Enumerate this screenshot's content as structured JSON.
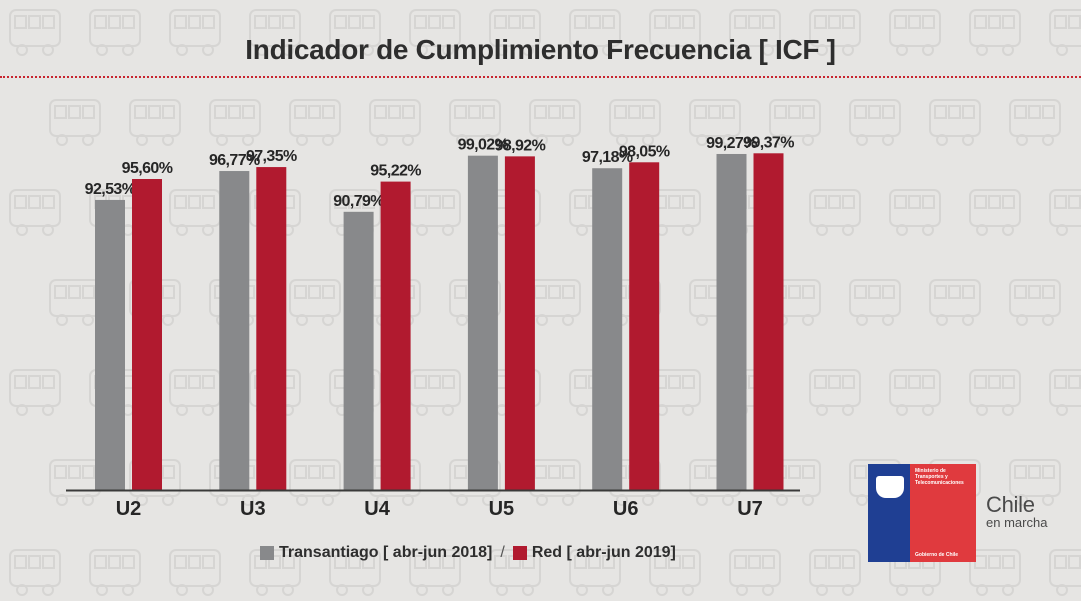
{
  "title": "Indicador de Cumplimiento Frecuencia [ ICF ]",
  "chart_data": {
    "type": "bar",
    "categories": [
      "U2",
      "U3",
      "U4",
      "U5",
      "U6",
      "U7"
    ],
    "series": [
      {
        "name": "Transantiago [ abr-jun 2018]",
        "color": "#88898b",
        "values": [
          92.53,
          96.77,
          90.79,
          99.02,
          97.18,
          99.27
        ],
        "labels": [
          "92,53%",
          "96,77%",
          "90,79%",
          "99,02%",
          "97,18%",
          "99,27%"
        ]
      },
      {
        "name": "Red [ abr-jun 2019]",
        "color": "#b11a2f",
        "values": [
          95.6,
          97.35,
          95.22,
          98.92,
          98.05,
          99.37
        ],
        "labels": [
          "95,60%",
          "97,35%",
          "95,22%",
          "98,92%",
          "98,05%",
          "99,37%"
        ]
      }
    ],
    "title": "Indicador de Cumplimiento Frecuencia [ ICF ]",
    "xlabel": "",
    "ylabel": "",
    "ylim": [
      50,
      100
    ],
    "grid": false,
    "legend": "bottom"
  },
  "legend": {
    "separator": "/"
  },
  "logo": {
    "ministry": "Ministerio de Transportes y Telecomunicaciones",
    "government": "Gobierno de Chile",
    "brand_main": "Chile",
    "brand_sub": "en marcha"
  }
}
